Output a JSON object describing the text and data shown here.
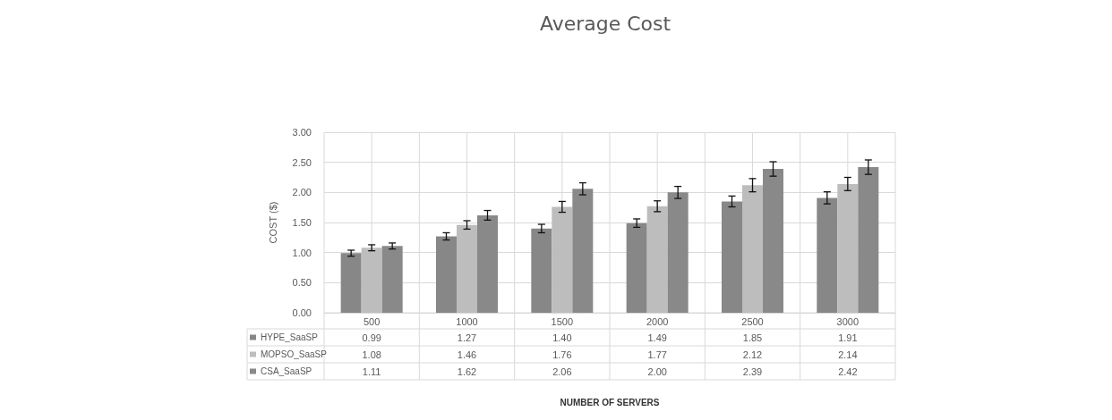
{
  "chart_data": {
    "type": "bar",
    "title": "Average Cost",
    "annotations": [
      "NUMBER OF SERVERS"
    ],
    "ylabel": "COST ($)",
    "categories": [
      "500",
      "1000",
      "1500",
      "2000",
      "2500",
      "3000"
    ],
    "series": [
      {
        "name": "HYPE_SaaSP",
        "color": "#878787",
        "values": [
          0.99,
          1.27,
          1.4,
          1.49,
          1.85,
          1.91
        ],
        "value_labels": [
          "0.99",
          "1.27",
          "1.40",
          "1.49",
          "1.85",
          "1.91"
        ],
        "errors": [
          0.05,
          0.06,
          0.07,
          0.07,
          0.09,
          0.1
        ]
      },
      {
        "name": "MOPSO_SaaSP",
        "color": "#bdbdbd",
        "values": [
          1.08,
          1.46,
          1.76,
          1.77,
          2.12,
          2.14
        ],
        "value_labels": [
          "1.08",
          "1.46",
          "1.76",
          "1.77",
          "2.12",
          "2.14"
        ],
        "errors": [
          0.05,
          0.07,
          0.09,
          0.09,
          0.11,
          0.11
        ]
      },
      {
        "name": "CSA_SaaSP",
        "color": "#898989",
        "values": [
          1.11,
          1.62,
          2.06,
          2.0,
          2.39,
          2.42
        ],
        "value_labels": [
          "1.11",
          "1.62",
          "2.06",
          "2.00",
          "2.39",
          "2.42"
        ],
        "errors": [
          0.05,
          0.08,
          0.1,
          0.1,
          0.12,
          0.12
        ]
      }
    ],
    "ylim": [
      0,
      3
    ],
    "yticks": [
      {
        "value": 0,
        "label": "0.00"
      },
      {
        "value": 0.5,
        "label": "0.50"
      },
      {
        "value": 1,
        "label": "1.00"
      },
      {
        "value": 1.5,
        "label": "1.50"
      },
      {
        "value": 2,
        "label": "2.00"
      },
      {
        "value": 2.5,
        "label": "2.50"
      },
      {
        "value": 3,
        "label": "3.00"
      }
    ],
    "grid": true,
    "legend": "bottom"
  }
}
